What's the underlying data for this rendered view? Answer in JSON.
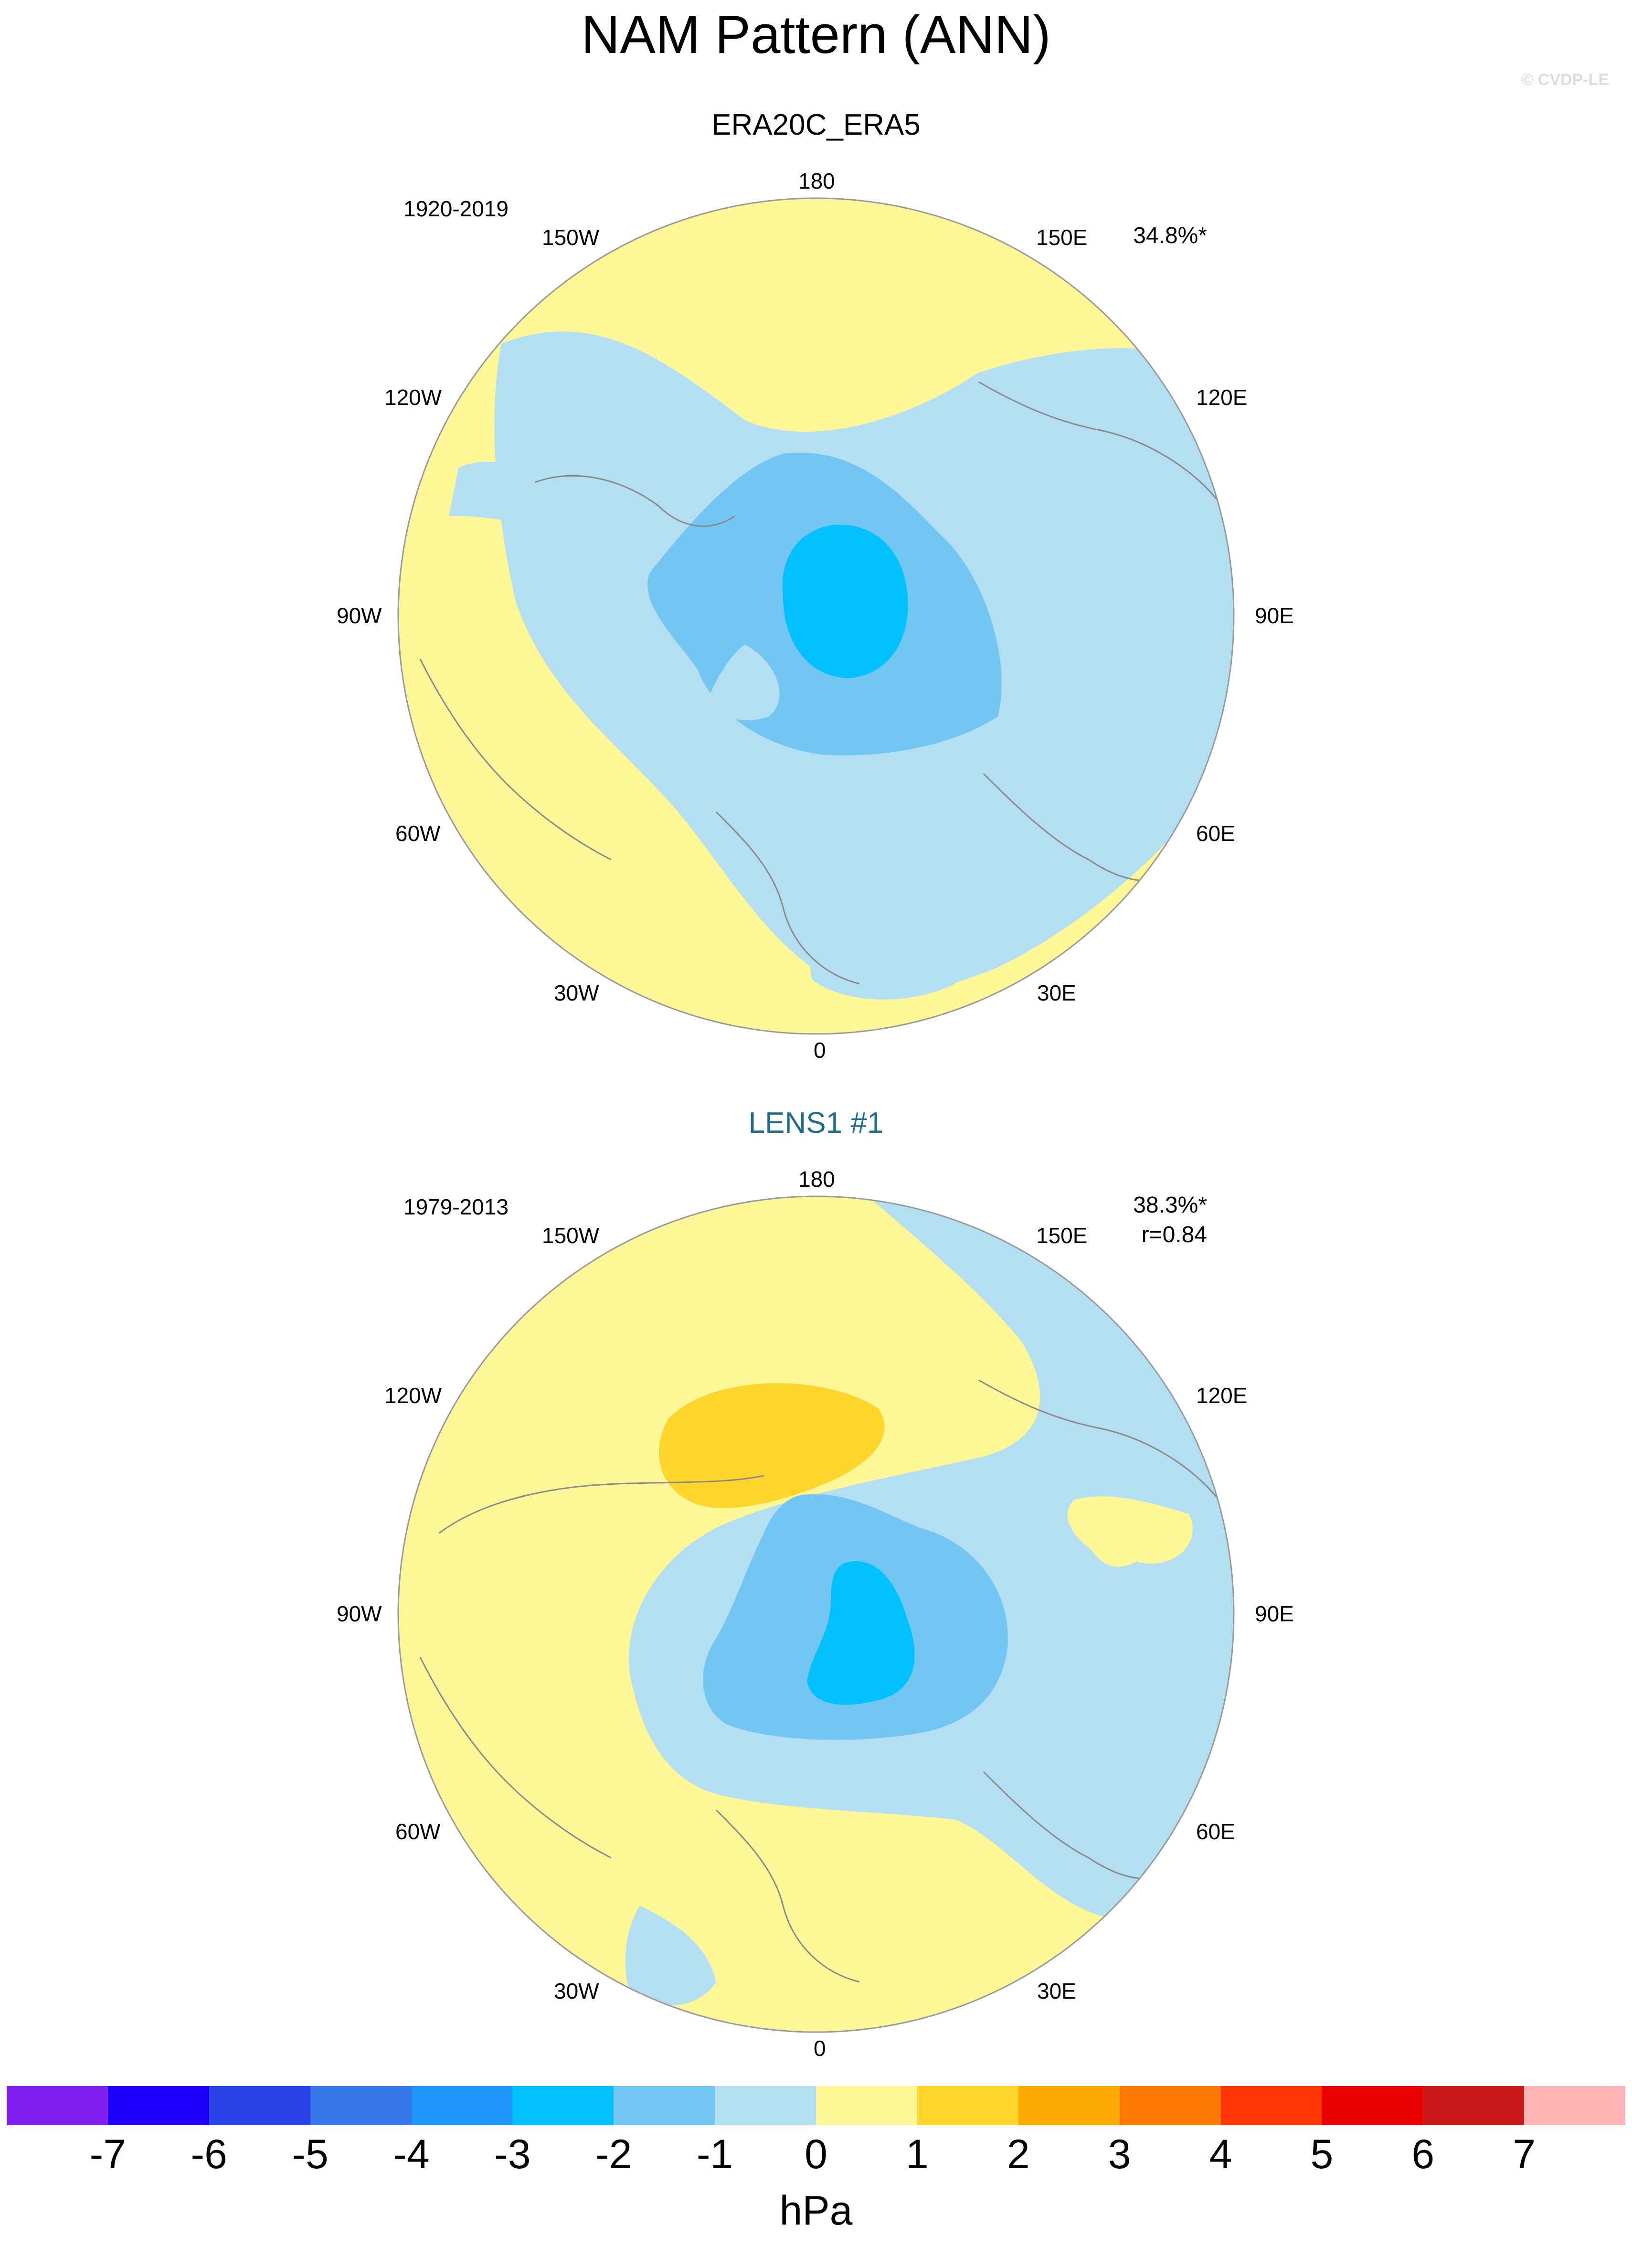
{
  "title": "NAM Pattern (ANN)",
  "credit": "© CVDP-LE",
  "panels": [
    {
      "title": "ERA20C_ERA5",
      "title_color": "#000000",
      "period": "1920-2019",
      "variance": "34.8%*",
      "correlation": ""
    },
    {
      "title": "LENS1 #1",
      "title_color": "#1f6e8c",
      "period": "1979-2013",
      "variance": "38.3%*",
      "correlation": "r=0.84"
    }
  ],
  "longitude_labels": {
    "top": "180",
    "upper_left": "150W",
    "upper_right": "150E",
    "left_high": "120W",
    "right_high": "120E",
    "left": "90W",
    "right": "90E",
    "left_low": "60W",
    "right_low": "60E",
    "lower_left": "30W",
    "lower_right": "30E",
    "bottom": "0"
  },
  "colorbar": {
    "unit": "hPa",
    "colors": [
      "#7f1ff0",
      "#1e00ff",
      "#2a43e8",
      "#3377e8",
      "#1c96fb",
      "#00c0ff",
      "#73c6f2",
      "#b4dff2",
      "#fdf798",
      "#fdd52b",
      "#fda905",
      "#fd7a04",
      "#fd3502",
      "#e80100",
      "#cc1a1a",
      "#fdb4b4"
    ],
    "ticks": [
      "-7",
      "-6",
      "-5",
      "-4",
      "-3",
      "-2",
      "-1",
      "0",
      "1",
      "2",
      "3",
      "4",
      "5",
      "6",
      "7"
    ]
  }
}
